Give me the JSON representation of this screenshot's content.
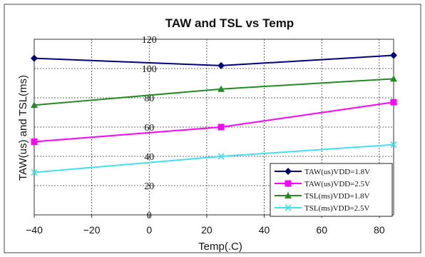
{
  "chart_data": {
    "type": "line",
    "title": "TAW and TSL vs Temp",
    "xlabel": "Temp(.C)",
    "ylabel": "TAW(us) and TSL(ms)",
    "xlim": [
      -40,
      85
    ],
    "ylim": [
      0,
      120
    ],
    "x_ticks": [
      -40,
      -20,
      0,
      20,
      40,
      60,
      80
    ],
    "y_ticks": [
      0,
      20,
      40,
      60,
      80,
      100,
      120
    ],
    "grid": true,
    "legend_position": "bottom-right",
    "x": [
      -40,
      25,
      85
    ],
    "series": [
      {
        "name": "TAW(us)VDD=1.8V",
        "values": [
          107,
          102,
          109
        ],
        "color": "#000080",
        "marker": "diamond"
      },
      {
        "name": "TAW(us)VDD=2.5V",
        "values": [
          50,
          60,
          77
        ],
        "color": "#ff00ff",
        "marker": "square"
      },
      {
        "name": "TSL(ms)VDD=1.8V",
        "values": [
          75,
          86,
          93
        ],
        "color": "#228b22",
        "marker": "triangle"
      },
      {
        "name": "TSL(ms)VDD=2.5V",
        "values": [
          29,
          40,
          48
        ],
        "color": "#40e0f0",
        "marker": "x"
      }
    ]
  }
}
